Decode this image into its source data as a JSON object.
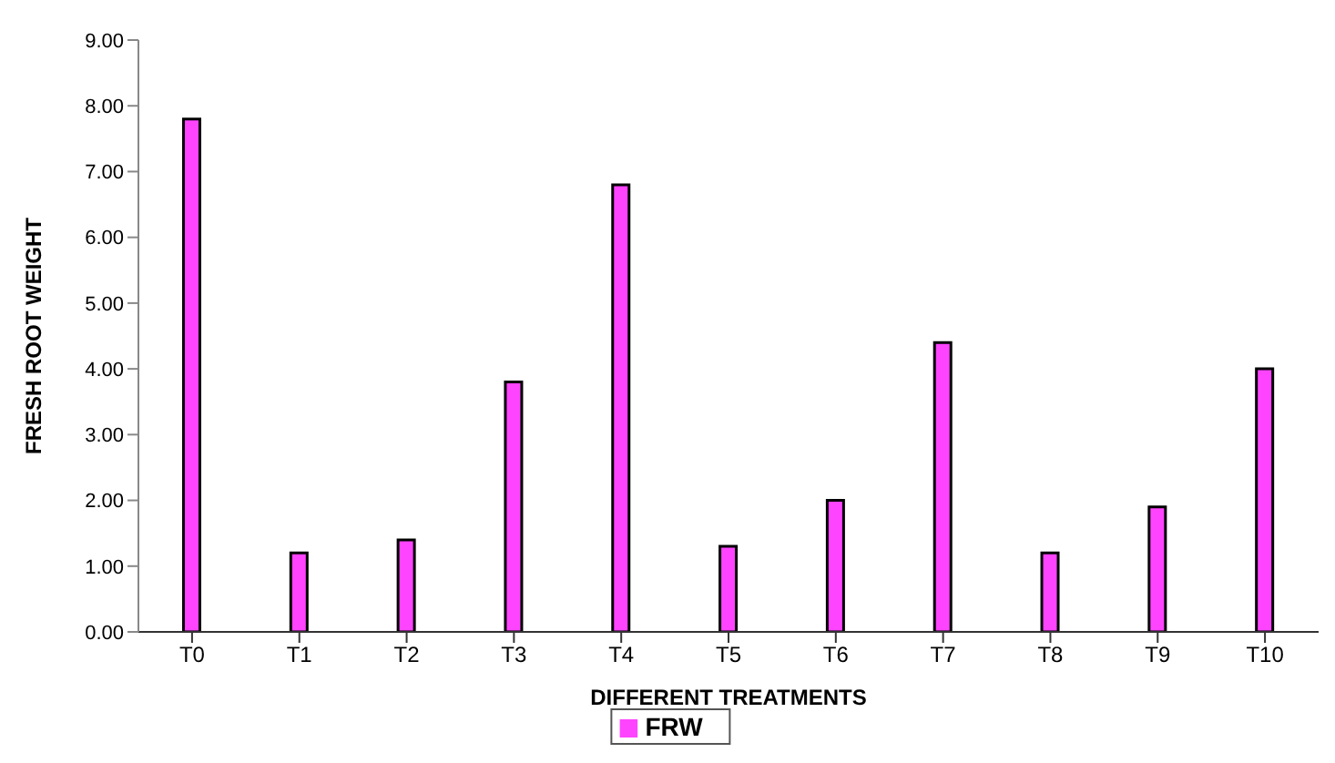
{
  "chart_data": {
    "type": "bar",
    "xlabel": "DIFFERENT TREATMENTS",
    "ylabel": "FRESH ROOT WEIGHT",
    "categories": [
      "T0",
      "T1",
      "T2",
      "T3",
      "T4",
      "T5",
      "T6",
      "T7",
      "T8",
      "T9",
      "T10"
    ],
    "series": [
      {
        "name": "FRW",
        "color": "#ff44ff",
        "values": [
          7.8,
          1.2,
          1.4,
          3.8,
          6.8,
          1.3,
          2.0,
          4.4,
          1.2,
          1.9,
          4.0
        ]
      }
    ],
    "ylim": [
      0,
      9
    ],
    "yticks": [
      {
        "value": 0,
        "label": "0.00"
      },
      {
        "value": 1,
        "label": "1.00"
      },
      {
        "value": 2,
        "label": "2.00"
      },
      {
        "value": 3,
        "label": "3.00"
      },
      {
        "value": 4,
        "label": "4.00"
      },
      {
        "value": 5,
        "label": "5.00"
      },
      {
        "value": 6,
        "label": "6.00"
      },
      {
        "value": 7,
        "label": "7.00"
      },
      {
        "value": 8,
        "label": "8.00"
      },
      {
        "value": 9,
        "label": "9.00"
      }
    ],
    "grid": false,
    "legend": "bottom"
  }
}
